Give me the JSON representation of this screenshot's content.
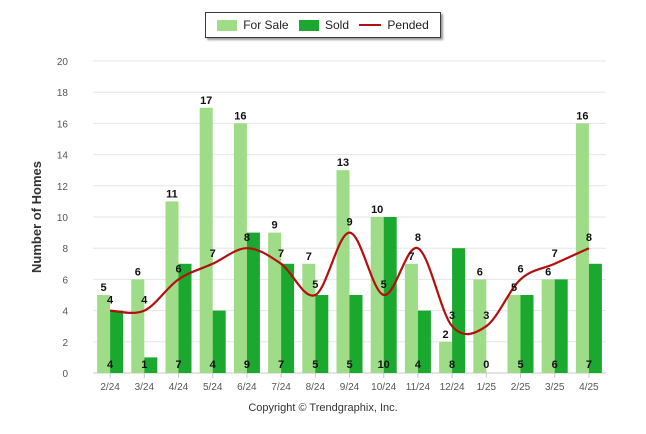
{
  "legend": {
    "for_sale": "For Sale",
    "sold": "Sold",
    "pended": "Pended"
  },
  "copyright": "Copyright © Trendgraphix, Inc.",
  "colors": {
    "for_sale": "#9edc88",
    "sold": "#1aa82e",
    "pended": "#b30f0f",
    "grid": "#e6e6e6"
  },
  "chart_data": {
    "type": "bar",
    "ylabel": "Number of Homes",
    "xlabel": "",
    "ylim": [
      0,
      20
    ],
    "yticks": [
      0,
      2,
      4,
      6,
      8,
      10,
      12,
      14,
      16,
      18,
      20
    ],
    "grid": true,
    "legend_position": "top-center",
    "categories": [
      "2/24",
      "3/24",
      "4/24",
      "5/24",
      "6/24",
      "7/24",
      "8/24",
      "9/24",
      "10/24",
      "11/24",
      "12/24",
      "1/25",
      "2/25",
      "3/25",
      "4/25"
    ],
    "series": [
      {
        "name": "For Sale",
        "type": "bar",
        "values": [
          5,
          6,
          11,
          17,
          16,
          9,
          7,
          13,
          10,
          7,
          2,
          6,
          5,
          6,
          16
        ]
      },
      {
        "name": "Sold",
        "type": "bar",
        "values": [
          4,
          1,
          7,
          4,
          9,
          7,
          5,
          5,
          10,
          4,
          8,
          0,
          5,
          6,
          7
        ]
      },
      {
        "name": "Pended",
        "type": "line",
        "values": [
          4,
          4,
          6,
          7,
          8,
          7,
          5,
          9,
          5,
          8,
          3,
          3,
          6,
          7,
          8
        ]
      }
    ]
  }
}
